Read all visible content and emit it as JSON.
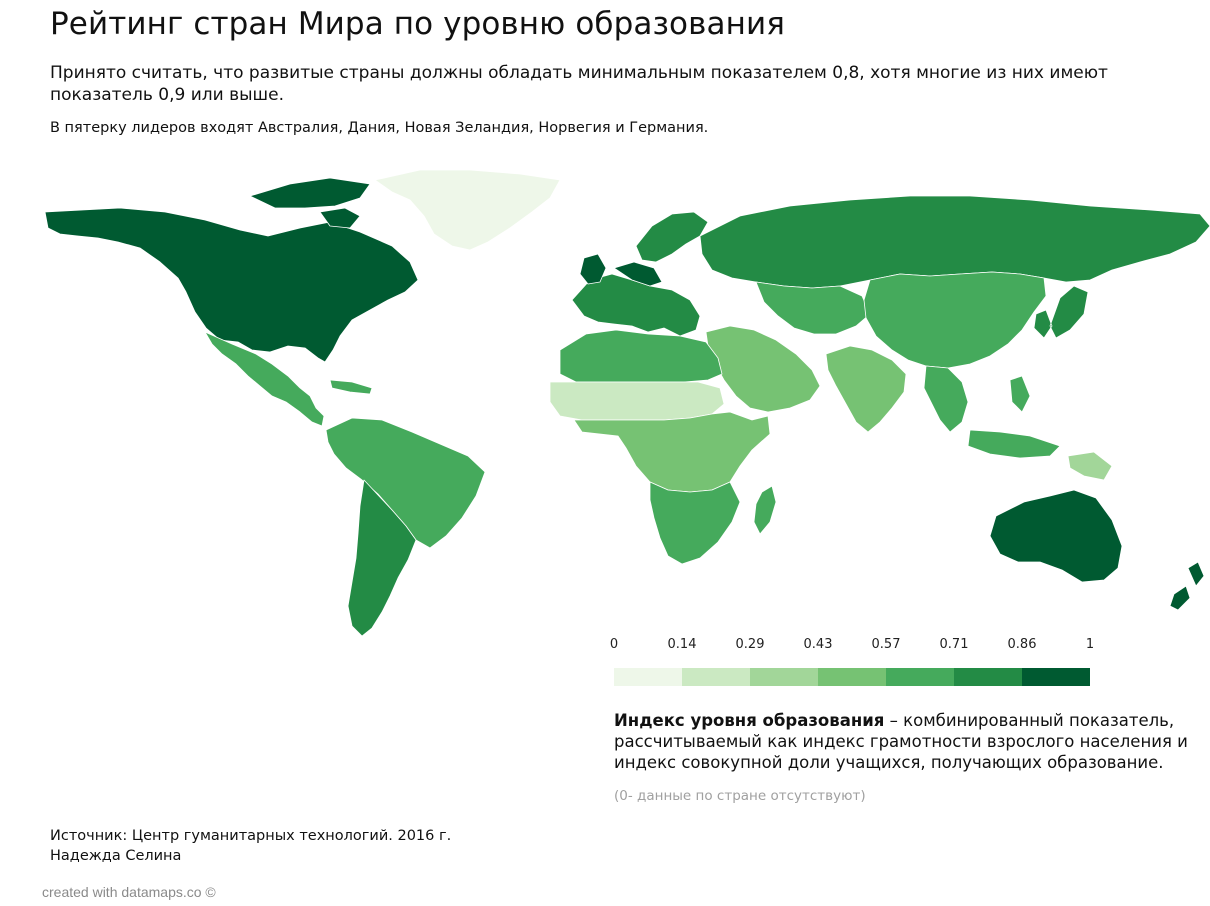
{
  "header": {
    "title": "Рейтинг стран Мира по уровню образования",
    "subtitle": "Принято считать, что развитые страны должны обладать минимальным показателем 0,8, хотя многие из них имеют показатель 0,9 или выше.",
    "note": "В пятерку лидеров входят Австралия, Дания, Новая Зеландия, Норвегия и Германия."
  },
  "map": {
    "projection": "Equirectangular world map",
    "colors": {
      "ocean": "#ffffff",
      "border": "#ffffff",
      "scale": [
        "#eef7e9",
        "#cbe9c2",
        "#a2d699",
        "#76c273",
        "#45aa5c",
        "#238b45",
        "#005a31"
      ]
    },
    "regions": [
      {
        "name": "North America (USA, Canada)",
        "bucket": 6
      },
      {
        "name": "Mexico & Central America",
        "bucket": 4
      },
      {
        "name": "Caribbean",
        "bucket": 4
      },
      {
        "name": "Greenland",
        "bucket": 0
      },
      {
        "name": "South America",
        "bucket": 4
      },
      {
        "name": "Southern Cone (Chile, Argentina)",
        "bucket": 5
      },
      {
        "name": "Western Europe",
        "bucket": 5
      },
      {
        "name": "Germany / Denmark / Netherlands",
        "bucket": 6
      },
      {
        "name": "Nordic countries",
        "bucket": 5
      },
      {
        "name": "Russia",
        "bucket": 5
      },
      {
        "name": "Central Asia",
        "bucket": 4
      },
      {
        "name": "Middle East",
        "bucket": 3
      },
      {
        "name": "North Africa",
        "bucket": 4
      },
      {
        "name": "Sahel",
        "bucket": 1
      },
      {
        "name": "Central & East Africa",
        "bucket": 3
      },
      {
        "name": "Southern Africa",
        "bucket": 4
      },
      {
        "name": "South Asia",
        "bucket": 3
      },
      {
        "name": "China",
        "bucket": 4
      },
      {
        "name": "Southeast Asia",
        "bucket": 4
      },
      {
        "name": "Japan & South Korea",
        "bucket": 5
      },
      {
        "name": "Papua New Guinea",
        "bucket": 2
      },
      {
        "name": "Australia",
        "bucket": 6
      },
      {
        "name": "New Zealand",
        "bucket": 6
      },
      {
        "name": "Madagascar",
        "bucket": 4
      }
    ]
  },
  "legend": {
    "ticks": [
      "0",
      "0.14",
      "0.29",
      "0.43",
      "0.57",
      "0.71",
      "0.86",
      "1"
    ],
    "description_bold": "Индекс уровня образования",
    "description_rest": " – комбинированный показатель, рассчитываемый как индекс грамотности взрослого населения и индекс совокупной доли учащихся, получающих образование.",
    "no_data": "(0- данные по стране отсутствуют)"
  },
  "footer": {
    "source_line1": "Источник: Центр гуманитарных технологий. 2016 г.",
    "source_line2": "Надежда Селина",
    "credit": "created with datamaps.co ©"
  }
}
